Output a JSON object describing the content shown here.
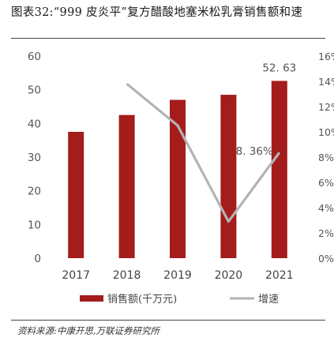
{
  "title": "图表32:“999 皮炎平”复方醋酸地塞米松乳膏销售额和速",
  "source": "资料来源:中康开思,万联证券研究所",
  "colors": {
    "bar": "#a51c1c",
    "line": "#b3b3b3"
  },
  "chart_data": {
    "type": "bar",
    "categories": [
      "2017",
      "2018",
      "2019",
      "2020",
      "2021"
    ],
    "series": [
      {
        "name": "销售额(千万元)",
        "type": "bar",
        "axis": "left",
        "values": [
          37.5,
          42.5,
          47.0,
          48.5,
          52.63
        ]
      },
      {
        "name": "增速",
        "type": "line",
        "axis": "right",
        "values": [
          null,
          13.8,
          10.5,
          2.9,
          8.36
        ]
      }
    ],
    "data_labels": [
      {
        "series": 0,
        "index": 4,
        "text": "52. 63"
      },
      {
        "series": 1,
        "index": 4,
        "text": "8. 36%"
      }
    ],
    "ylim_left": [
      0,
      60
    ],
    "yticks_left": [
      "0",
      "10",
      "20",
      "30",
      "40",
      "50",
      "60"
    ],
    "ylim_right": [
      0,
      16
    ],
    "yticks_right": [
      "0%",
      "2%",
      "4%",
      "6%",
      "8%",
      "10%",
      "12%",
      "14%",
      "16%"
    ],
    "legend_position": "bottom"
  }
}
